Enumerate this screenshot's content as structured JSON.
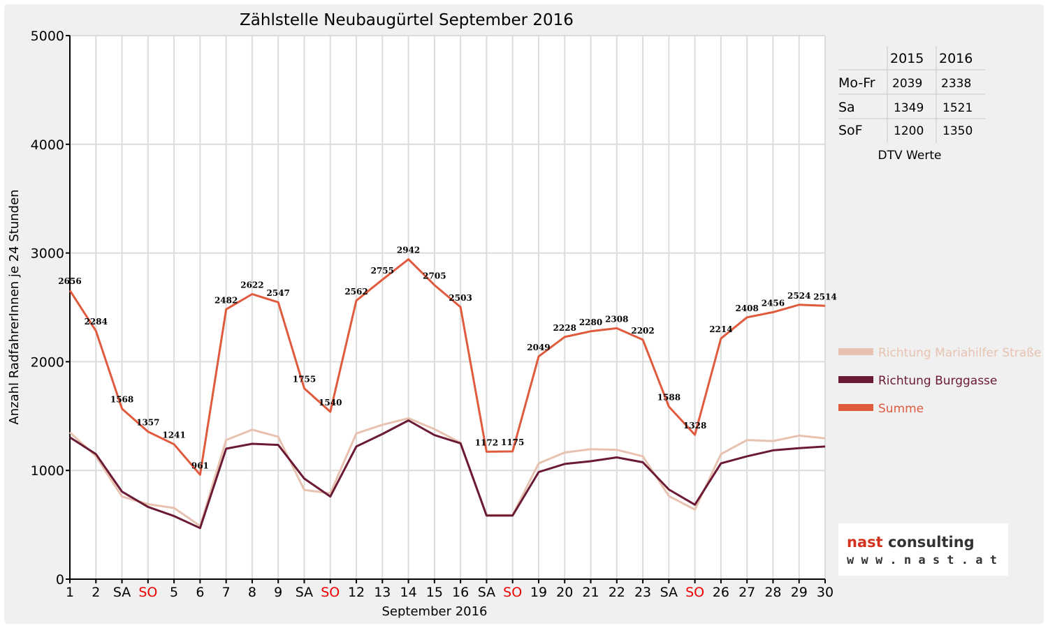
{
  "chart_data": {
    "type": "line",
    "title": "Zählstelle Neubaugürtel September 2016",
    "xlabel": "September 2016",
    "ylabel": "Anzahl RadfahrerInnen je 24 Stunden",
    "ylim": [
      0,
      5000
    ],
    "yticks": [
      0,
      1000,
      2000,
      3000,
      4000,
      5000
    ],
    "grid": true,
    "legend_position": "right",
    "categories": [
      "1",
      "2",
      "SA",
      "SO",
      "5",
      "6",
      "7",
      "8",
      "9",
      "SA",
      "SO",
      "12",
      "13",
      "14",
      "15",
      "16",
      "SA",
      "SO",
      "19",
      "20",
      "21",
      "22",
      "23",
      "SA",
      "SO",
      "26",
      "27",
      "28",
      "29",
      "30"
    ],
    "weekend_colors": {
      "SA": "#000000",
      "SO": "#ee0000"
    },
    "series": [
      {
        "name": "Richtung Mariahilfer Straße",
        "color": "#e8c2b0",
        "values": [
          1350,
          1130,
          760,
          690,
          655,
          490,
          1280,
          1375,
          1310,
          820,
          790,
          1340,
          1420,
          1480,
          1380,
          1255,
          590,
          590,
          1065,
          1165,
          1195,
          1190,
          1130,
          765,
          640,
          1150,
          1280,
          1270,
          1320,
          1295
        ]
      },
      {
        "name": "Richtung Burggasse",
        "color": "#6b1a35",
        "values": [
          1305,
          1150,
          805,
          665,
          580,
          470,
          1200,
          1245,
          1235,
          925,
          760,
          1220,
          1335,
          1460,
          1325,
          1250,
          585,
          585,
          985,
          1060,
          1085,
          1120,
          1075,
          825,
          685,
          1065,
          1130,
          1185,
          1205,
          1220
        ]
      },
      {
        "name": "Summe",
        "color": "#e05a3e",
        "values": [
          2656,
          2284,
          1568,
          1357,
          1241,
          961,
          2482,
          2622,
          2547,
          1755,
          1540,
          2562,
          2755,
          2942,
          2705,
          2503,
          1172,
          1175,
          2049,
          2228,
          2280,
          2308,
          2202,
          1588,
          1328,
          2214,
          2408,
          2456,
          2524,
          2514
        ]
      }
    ],
    "data_labels": [
      "2656",
      "2284",
      "1568",
      "1357",
      "1241",
      "961",
      "2482",
      "2622",
      "2547",
      "1755",
      "1540",
      "2562",
      "2755",
      "2942",
      "2705",
      "2503",
      "1172",
      "1175",
      "2049",
      "2228",
      "2280",
      "2308",
      "2202",
      "1588",
      "1328",
      "2214",
      "2408",
      "2456",
      "2524",
      "2514"
    ]
  },
  "table": {
    "headers": [
      "",
      "2015",
      "2016"
    ],
    "rows": [
      {
        "label": "Mo-Fr",
        "v2015": "2039",
        "v2016": "2338"
      },
      {
        "label": "Sa",
        "v2015": "1349",
        "v2016": "1521"
      },
      {
        "label": "SoF",
        "v2015": "1200",
        "v2016": "1350"
      }
    ],
    "caption": "DTV Werte"
  },
  "logo": {
    "word1": "nast",
    "word2": "consulting",
    "url": "w w w . n a s t . a t",
    "color_word1": "#d2321e",
    "color_word2": "#333333"
  }
}
